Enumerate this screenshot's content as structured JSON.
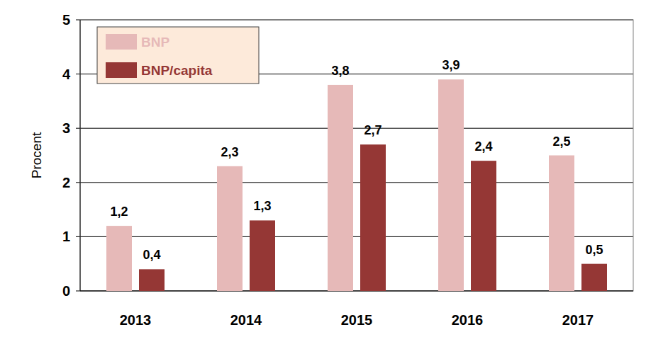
{
  "chart_data": {
    "type": "bar",
    "y_label": "Procent",
    "categories": [
      "2013",
      "2014",
      "2015",
      "2016",
      "2017"
    ],
    "series": [
      {
        "name": "BNP",
        "color": "#e6b9b8",
        "values": [
          1.2,
          2.3,
          3.8,
          3.9,
          2.5
        ],
        "value_labels": [
          "1,2",
          "2,3",
          "3,8",
          "3,9",
          "2,5"
        ]
      },
      {
        "name": "BNP/capita",
        "color": "#953735",
        "values": [
          0.4,
          1.3,
          2.7,
          2.4,
          0.5
        ],
        "value_labels": [
          "0,4",
          "1,3",
          "2,7",
          "2,4",
          "0,5"
        ]
      }
    ],
    "ylim": [
      0,
      5
    ],
    "yticks": [
      0,
      1,
      2,
      3,
      4,
      5
    ],
    "grid": true,
    "data_labels": true,
    "legend": "top-left"
  }
}
